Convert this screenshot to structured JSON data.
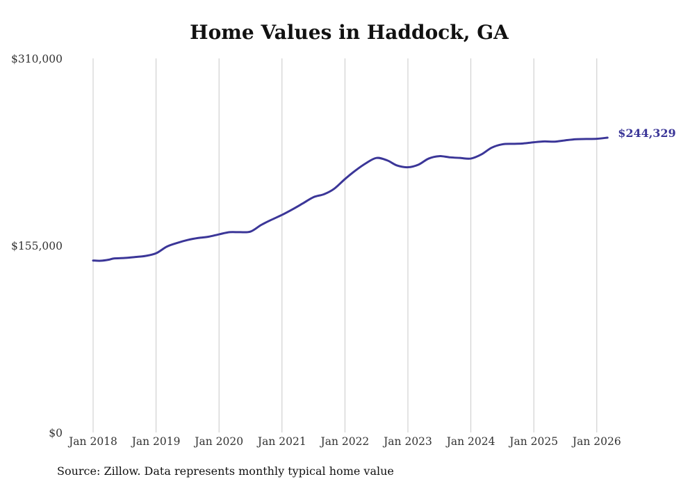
{
  "chart_data": {
    "type": "line",
    "title": "Home Values in Haddock, GA",
    "source": "Source: Zillow. Data represents monthly typical home value",
    "xlabel": "",
    "ylabel": "",
    "ylim": [
      0,
      310000
    ],
    "y_ticks": [
      {
        "value": 0,
        "label": "$0"
      },
      {
        "value": 155000,
        "label": "$155,000"
      },
      {
        "value": 310000,
        "label": "$310,000"
      }
    ],
    "x_ticks": [
      {
        "value": 2018.0,
        "label": "Jan 2018"
      },
      {
        "value": 2019.0,
        "label": "Jan 2019"
      },
      {
        "value": 2020.0,
        "label": "Jan 2020"
      },
      {
        "value": 2021.0,
        "label": "Jan 2021"
      },
      {
        "value": 2022.0,
        "label": "Jan 2022"
      },
      {
        "value": 2023.0,
        "label": "Jan 2023"
      },
      {
        "value": 2024.0,
        "label": "Jan 2024"
      },
      {
        "value": 2025.0,
        "label": "Jan 2025"
      },
      {
        "value": 2026.0,
        "label": "Jan 2026"
      }
    ],
    "xlim": [
      2018.0,
      2026.17
    ],
    "grid": "vertical",
    "line_color": "#3b3698",
    "end_label": "$244,329",
    "series": [
      {
        "name": "Typical home value",
        "x": [
          2018.0,
          2018.12,
          2018.25,
          2018.33,
          2018.5,
          2018.67,
          2018.83,
          2019.0,
          2019.17,
          2019.33,
          2019.5,
          2019.67,
          2019.83,
          2020.0,
          2020.17,
          2020.33,
          2020.5,
          2020.67,
          2020.83,
          2021.0,
          2021.17,
          2021.33,
          2021.5,
          2021.67,
          2021.83,
          2022.0,
          2022.17,
          2022.33,
          2022.5,
          2022.67,
          2022.83,
          2023.0,
          2023.17,
          2023.33,
          2023.5,
          2023.67,
          2023.83,
          2024.0,
          2024.17,
          2024.33,
          2024.5,
          2024.67,
          2024.83,
          2025.0,
          2025.17,
          2025.33,
          2025.5,
          2025.67,
          2025.83,
          2026.0,
          2026.17
        ],
        "values": [
          142500,
          142300,
          143200,
          144200,
          144600,
          145400,
          146300,
          148500,
          154000,
          157000,
          159500,
          161200,
          162200,
          164200,
          166000,
          166000,
          166500,
          172000,
          176200,
          180300,
          185000,
          189800,
          195000,
          197500,
          202000,
          210000,
          217200,
          223000,
          227500,
          225500,
          221200,
          219800,
          222000,
          227000,
          229000,
          228000,
          227500,
          227000,
          230500,
          236000,
          238800,
          239200,
          239500,
          240500,
          241200,
          241000,
          242100,
          243000,
          243200,
          243400,
          244329
        ]
      }
    ]
  }
}
